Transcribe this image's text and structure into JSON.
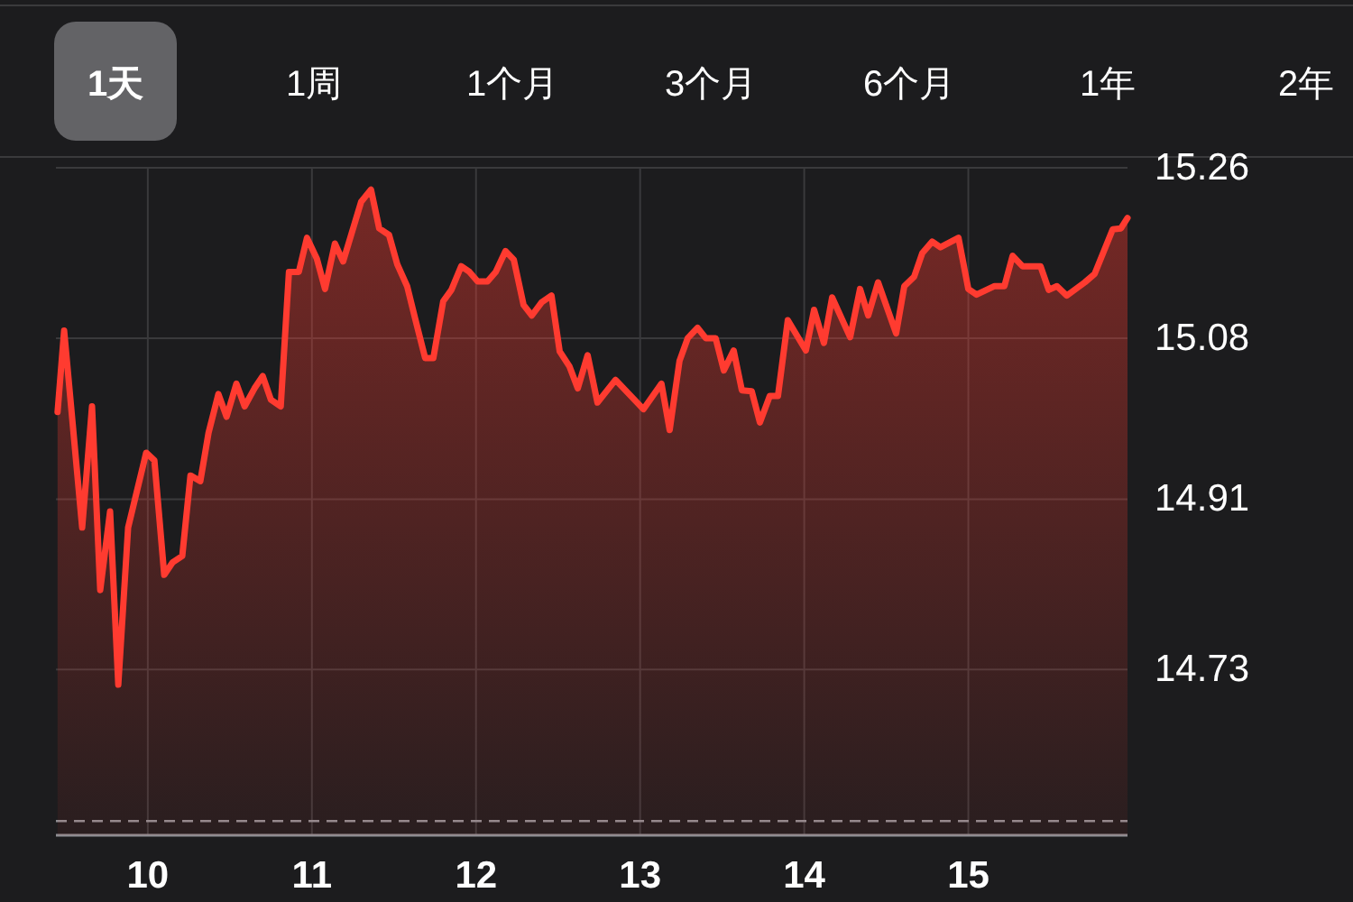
{
  "chart_data": {
    "type": "area",
    "annotations": [
      "1天",
      "1周",
      "1个月",
      "3个月",
      "6个月",
      "1年",
      "2年"
    ],
    "x": [
      9.45,
      9.49,
      9.6,
      9.66,
      9.71,
      9.77,
      9.82,
      9.88,
      9.99,
      10.04,
      10.1,
      10.15,
      10.21,
      10.26,
      10.32,
      10.37,
      10.43,
      10.48,
      10.54,
      10.59,
      10.65,
      10.7,
      10.75,
      10.81,
      10.86,
      10.92,
      10.97,
      11.03,
      11.08,
      11.14,
      11.19,
      11.3,
      11.36,
      11.41,
      11.47,
      11.52,
      11.58,
      11.63,
      11.69,
      11.74,
      11.8,
      11.85,
      11.91,
      11.96,
      12.01,
      12.07,
      12.12,
      12.18,
      12.23,
      12.29,
      12.34,
      12.4,
      12.46,
      12.51,
      12.57,
      12.62,
      12.68,
      12.74,
      12.85,
      13.02,
      13.13,
      13.18,
      13.24,
      13.29,
      13.35,
      13.4,
      13.46,
      13.51,
      13.57,
      13.62,
      13.68,
      13.73,
      13.79,
      13.84,
      13.9,
      14.01,
      14.06,
      14.12,
      14.17,
      14.28,
      14.34,
      14.39,
      14.45,
      14.56,
      14.61,
      14.67,
      14.72,
      14.78,
      14.83,
      14.94,
      15.0,
      15.05,
      15.16,
      15.22,
      15.27,
      15.33,
      15.44,
      15.49,
      15.54,
      15.6,
      15.71,
      15.77,
      15.88,
      15.93,
      15.97
    ],
    "series": [
      {
        "color": "#ff3b30",
        "values": [
          15.002,
          15.088,
          14.88,
          15.008,
          14.814,
          14.897,
          14.714,
          14.88,
          14.959,
          14.951,
          14.83,
          14.843,
          14.85,
          14.935,
          14.929,
          14.98,
          15.021,
          14.997,
          15.032,
          15.008,
          15.027,
          15.04,
          15.015,
          15.008,
          15.15,
          15.15,
          15.186,
          15.164,
          15.132,
          15.18,
          15.161,
          15.224,
          15.237,
          15.196,
          15.189,
          15.158,
          15.135,
          15.1,
          15.059,
          15.059,
          15.119,
          15.131,
          15.156,
          15.15,
          15.14,
          15.14,
          15.15,
          15.172,
          15.163,
          15.115,
          15.104,
          15.118,
          15.125,
          15.066,
          15.05,
          15.027,
          15.062,
          15.012,
          15.036,
          15.005,
          15.032,
          14.983,
          15.056,
          15.08,
          15.091,
          15.08,
          15.08,
          15.046,
          15.067,
          15.025,
          15.024,
          14.991,
          15.019,
          15.019,
          15.099,
          15.067,
          15.11,
          15.075,
          15.123,
          15.081,
          15.132,
          15.104,
          15.139,
          15.085,
          15.135,
          15.145,
          15.17,
          15.182,
          15.176,
          15.186,
          15.132,
          15.126,
          15.135,
          15.135,
          15.167,
          15.156,
          15.156,
          15.131,
          15.135,
          15.125,
          15.139,
          15.148,
          15.195,
          15.196,
          15.207
        ]
      }
    ],
    "xlim": [
      9.44,
      15.97
    ],
    "xticks": [
      10,
      11,
      12,
      13,
      14,
      15
    ],
    "ylim": [
      14.555,
      15.26
    ],
    "yticks": [
      15.26,
      15.08,
      14.91,
      14.73
    ],
    "ref_lines": [
      {
        "axis": "y",
        "value": 14.57,
        "color": "#8e8e93",
        "line_style": "dashed"
      }
    ],
    "grid": true,
    "line_style": "solid"
  }
}
